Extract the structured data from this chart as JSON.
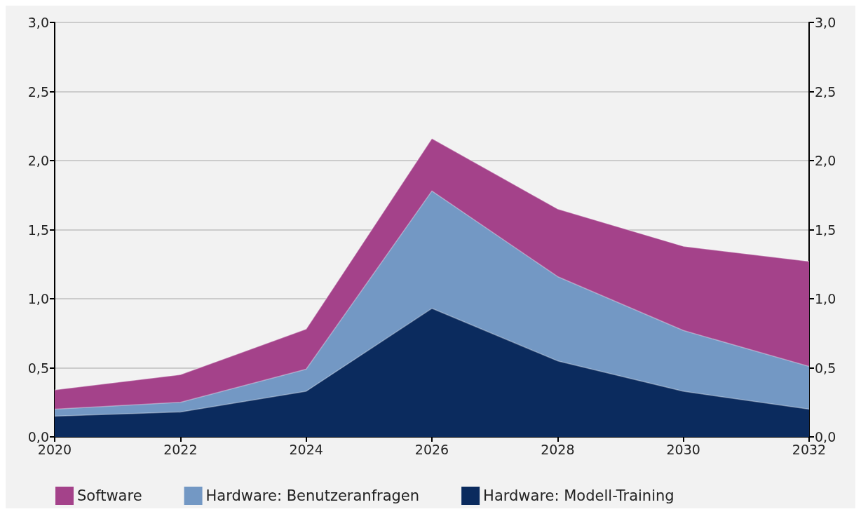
{
  "chart_data": {
    "type": "area",
    "stacked": true,
    "x": [
      2020,
      2022,
      2024,
      2026,
      2028,
      2030,
      2032
    ],
    "series": [
      {
        "name": "Hardware: Modell-Training",
        "color": "#0b2b5e",
        "values": [
          0.15,
          0.18,
          0.33,
          0.93,
          0.55,
          0.33,
          0.2
        ]
      },
      {
        "name": "Hardware: Benutzeranfragen",
        "color": "#7398c4",
        "values": [
          0.05,
          0.07,
          0.16,
          0.85,
          0.61,
          0.44,
          0.31
        ]
      },
      {
        "name": "Software",
        "color": "#a4428a",
        "values": [
          0.14,
          0.2,
          0.29,
          0.38,
          0.49,
          0.61,
          0.76
        ]
      }
    ],
    "xlim": [
      2020,
      2032
    ],
    "xticks": [
      2020,
      2022,
      2024,
      2026,
      2028,
      2030,
      2032
    ],
    "ylim": [
      0,
      3
    ],
    "yticks": [
      {
        "value": 0,
        "label": "0,0"
      },
      {
        "value": 0.5,
        "label": "0,5"
      },
      {
        "value": 1,
        "label": "1,0"
      },
      {
        "value": 1.5,
        "label": "1,5"
      },
      {
        "value": 2,
        "label": "2,0"
      },
      {
        "value": 2.5,
        "label": "2,5"
      },
      {
        "value": 3,
        "label": "3,0"
      }
    ],
    "y2lim": [
      0,
      3
    ],
    "y2ticks": [
      {
        "value": 0,
        "label": "0,0"
      },
      {
        "value": 0.5,
        "label": "0,5"
      },
      {
        "value": 1,
        "label": "1,0"
      },
      {
        "value": 1.5,
        "label": "1,5"
      },
      {
        "value": 2,
        "label": "2,0"
      },
      {
        "value": 2.5,
        "label": "2,5"
      },
      {
        "value": 3,
        "label": "3,0"
      }
    ],
    "grid": "y",
    "legend": "bottom"
  }
}
